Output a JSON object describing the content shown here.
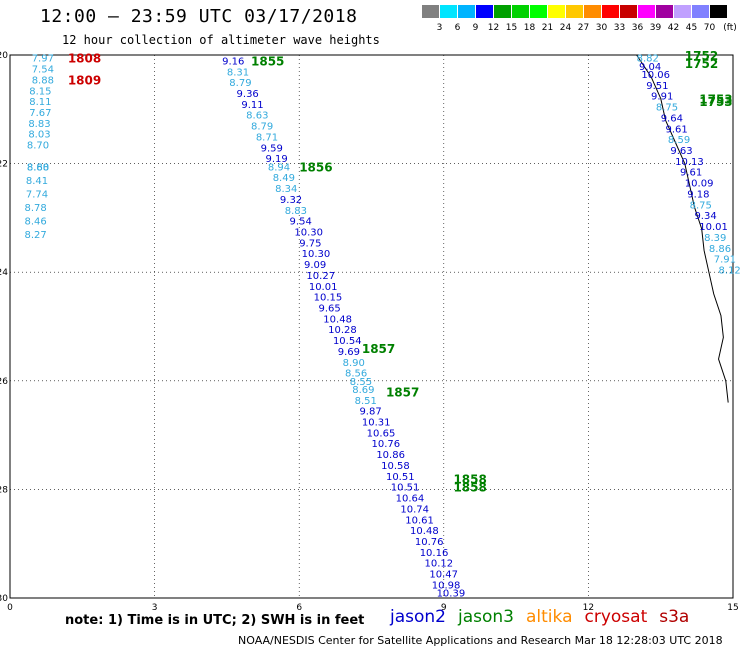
{
  "title": "12:00 – 23:59 UTC 03/17/2018",
  "subtitle": "12 hour collection of altimeter wave heights",
  "colorbar": {
    "unit": "(ft)",
    "levels": [
      "3",
      "6",
      "9",
      "12",
      "15",
      "18",
      "21",
      "24",
      "27",
      "30",
      "33",
      "36",
      "39",
      "42",
      "45",
      "70"
    ],
    "colors": [
      "#808080",
      "#00e5ff",
      "#00b4ff",
      "#0000ff",
      "#00a000",
      "#00d200",
      "#00ff00",
      "#ffff00",
      "#ffc800",
      "#ff8c00",
      "#ff0000",
      "#c80000",
      "#ff00ff",
      "#a000a0",
      "#c0a0ff",
      "#8080ff",
      "#000000"
    ]
  },
  "map": {
    "y_ticks": [
      "20",
      "22",
      "24",
      "26",
      "28",
      "30"
    ],
    "x_ticks": [
      "0",
      "3",
      "6",
      "9",
      "12",
      "15"
    ],
    "lon_range": [
      0,
      15
    ],
    "lat_range": [
      20,
      30
    ]
  },
  "series_colors": {
    "jason2": "#0000cc",
    "jason3": "#008000",
    "altika": "#ff8c00",
    "cryosat": "#cc0000",
    "s3a": "#b00000",
    "light": "#33aadd"
  },
  "tracks": {
    "left": {
      "times": [
        {
          "label": "1808",
          "x": 1.2,
          "y": 20.05,
          "color": "cryosat"
        },
        {
          "label": "1809",
          "x": 1.2,
          "y": 20.45,
          "color": "cryosat"
        }
      ],
      "values": [
        {
          "v": "7.97",
          "x": 0.45,
          "y": 20.05
        },
        {
          "v": "7.54",
          "x": 0.45,
          "y": 20.25
        },
        {
          "v": "8.88",
          "x": 0.45,
          "y": 20.45
        },
        {
          "v": "8.15",
          "x": 0.4,
          "y": 20.65
        },
        {
          "v": "8.11",
          "x": 0.4,
          "y": 20.85
        },
        {
          "v": "7.67",
          "x": 0.4,
          "y": 21.05
        },
        {
          "v": "8.83",
          "x": 0.38,
          "y": 21.25
        },
        {
          "v": "8.03",
          "x": 0.38,
          "y": 21.45
        },
        {
          "v": "8.70",
          "x": 0.35,
          "y": 21.65
        },
        {
          "v": "8.60",
          "x": 0.35,
          "y": 22.05
        },
        {
          "v": "8.41",
          "x": 0.33,
          "y": 22.3
        },
        {
          "v": "7.74",
          "x": 0.33,
          "y": 22.55
        },
        {
          "v": "8.78",
          "x": 0.3,
          "y": 22.8
        },
        {
          "v": "8.46",
          "x": 0.3,
          "y": 23.05
        },
        {
          "v": "8.27",
          "x": 0.3,
          "y": 23.3
        },
        {
          "v": "8.88",
          "x": 0.35,
          "y": 22.05
        }
      ]
    },
    "center": {
      "times": [
        {
          "label": "1855",
          "x": 5.0,
          "y": 20.1
        },
        {
          "label": "1856",
          "x": 6.0,
          "y": 22.05
        },
        {
          "label": "1857",
          "x": 7.3,
          "y": 25.4
        },
        {
          "label": "1857",
          "x": 7.8,
          "y": 26.2
        },
        {
          "label": "1858",
          "x": 9.2,
          "y": 27.8
        },
        {
          "label": "1858",
          "x": 9.2,
          "y": 27.95
        }
      ],
      "values": [
        {
          "v": "9.16",
          "x": 4.4,
          "y": 20.1,
          "c": "jason2"
        },
        {
          "v": "8.31",
          "x": 4.5,
          "y": 20.3,
          "c": "light"
        },
        {
          "v": "8.79",
          "x": 4.55,
          "y": 20.5,
          "c": "light"
        },
        {
          "v": "9.36",
          "x": 4.7,
          "y": 20.7,
          "c": "jason2"
        },
        {
          "v": "9.11",
          "x": 4.8,
          "y": 20.9,
          "c": "jason2"
        },
        {
          "v": "8.63",
          "x": 4.9,
          "y": 21.1,
          "c": "light"
        },
        {
          "v": "8.79",
          "x": 5.0,
          "y": 21.3,
          "c": "light"
        },
        {
          "v": "8.71",
          "x": 5.1,
          "y": 21.5,
          "c": "light"
        },
        {
          "v": "9.59",
          "x": 5.2,
          "y": 21.7,
          "c": "jason2"
        },
        {
          "v": "9.19",
          "x": 5.3,
          "y": 21.9,
          "c": "jason2"
        },
        {
          "v": "8.94",
          "x": 5.35,
          "y": 22.05,
          "c": "light"
        },
        {
          "v": "8.49",
          "x": 5.45,
          "y": 22.25,
          "c": "light"
        },
        {
          "v": "8.34",
          "x": 5.5,
          "y": 22.45,
          "c": "light"
        },
        {
          "v": "9.32",
          "x": 5.6,
          "y": 22.65,
          "c": "jason2"
        },
        {
          "v": "8.83",
          "x": 5.7,
          "y": 22.85,
          "c": "light"
        },
        {
          "v": "9.54",
          "x": 5.8,
          "y": 23.05,
          "c": "jason2"
        },
        {
          "v": "10.30",
          "x": 5.9,
          "y": 23.25,
          "c": "jason2"
        },
        {
          "v": "9.75",
          "x": 6.0,
          "y": 23.45,
          "c": "jason2"
        },
        {
          "v": "10.30",
          "x": 6.05,
          "y": 23.65,
          "c": "jason2"
        },
        {
          "v": "9.09",
          "x": 6.1,
          "y": 23.85,
          "c": "jason2"
        },
        {
          "v": "10.27",
          "x": 6.15,
          "y": 24.05,
          "c": "jason2"
        },
        {
          "v": "10.01",
          "x": 6.2,
          "y": 24.25,
          "c": "jason2"
        },
        {
          "v": "10.15",
          "x": 6.3,
          "y": 24.45,
          "c": "jason2"
        },
        {
          "v": "9.65",
          "x": 6.4,
          "y": 24.65,
          "c": "jason2"
        },
        {
          "v": "10.48",
          "x": 6.5,
          "y": 24.85,
          "c": "jason2"
        },
        {
          "v": "10.28",
          "x": 6.6,
          "y": 25.05,
          "c": "jason2"
        },
        {
          "v": "10.54",
          "x": 6.7,
          "y": 25.25,
          "c": "jason2"
        },
        {
          "v": "9.69",
          "x": 6.8,
          "y": 25.45,
          "c": "jason2"
        },
        {
          "v": "8.90",
          "x": 6.9,
          "y": 25.65,
          "c": "light"
        },
        {
          "v": "8.56",
          "x": 6.95,
          "y": 25.85,
          "c": "light"
        },
        {
          "v": "8.55",
          "x": 7.05,
          "y": 26.0,
          "c": "light"
        },
        {
          "v": "8.69",
          "x": 7.1,
          "y": 26.15,
          "c": "light"
        },
        {
          "v": "8.51",
          "x": 7.15,
          "y": 26.35,
          "c": "light"
        },
        {
          "v": "9.87",
          "x": 7.25,
          "y": 26.55,
          "c": "jason2"
        },
        {
          "v": "10.31",
          "x": 7.3,
          "y": 26.75,
          "c": "jason2"
        },
        {
          "v": "10.65",
          "x": 7.4,
          "y": 26.95,
          "c": "jason2"
        },
        {
          "v": "10.76",
          "x": 7.5,
          "y": 27.15,
          "c": "jason2"
        },
        {
          "v": "10.86",
          "x": 7.6,
          "y": 27.35,
          "c": "jason2"
        },
        {
          "v": "10.58",
          "x": 7.7,
          "y": 27.55,
          "c": "jason2"
        },
        {
          "v": "10.51",
          "x": 7.8,
          "y": 27.75,
          "c": "jason2"
        },
        {
          "v": "10.51",
          "x": 7.9,
          "y": 27.95,
          "c": "jason2"
        },
        {
          "v": "10.64",
          "x": 8.0,
          "y": 28.15,
          "c": "jason2"
        },
        {
          "v": "10.74",
          "x": 8.1,
          "y": 28.35,
          "c": "jason2"
        },
        {
          "v": "10.61",
          "x": 8.2,
          "y": 28.55,
          "c": "jason2"
        },
        {
          "v": "10.48",
          "x": 8.3,
          "y": 28.75,
          "c": "jason2"
        },
        {
          "v": "10.76",
          "x": 8.4,
          "y": 28.95,
          "c": "jason2"
        },
        {
          "v": "10.16",
          "x": 8.5,
          "y": 29.15,
          "c": "jason2"
        },
        {
          "v": "10.12",
          "x": 8.6,
          "y": 29.35,
          "c": "jason2"
        },
        {
          "v": "10.47",
          "x": 8.7,
          "y": 29.55,
          "c": "jason2"
        },
        {
          "v": "10.98",
          "x": 8.75,
          "y": 29.75,
          "c": "jason2"
        },
        {
          "v": "10.39",
          "x": 8.85,
          "y": 29.9,
          "c": "jason2"
        }
      ]
    },
    "right": {
      "times": [
        {
          "label": "1752",
          "x": 14.0,
          "y": 20.0
        },
        {
          "label": "1752",
          "x": 14.0,
          "y": 20.15
        },
        {
          "label": "1753",
          "x": 14.3,
          "y": 20.8
        },
        {
          "label": "1753",
          "x": 14.3,
          "y": 20.85
        }
      ],
      "values": [
        {
          "v": "8.82",
          "x": 13.0,
          "y": 20.05,
          "c": "light"
        },
        {
          "v": "9.04",
          "x": 13.05,
          "y": 20.2,
          "c": "jason2"
        },
        {
          "v": "10.06",
          "x": 13.1,
          "y": 20.35,
          "c": "jason2"
        },
        {
          "v": "9.51",
          "x": 13.2,
          "y": 20.55,
          "c": "jason2"
        },
        {
          "v": "9.91",
          "x": 13.3,
          "y": 20.75,
          "c": "jason2"
        },
        {
          "v": "8.75",
          "x": 13.4,
          "y": 20.95,
          "c": "light"
        },
        {
          "v": "9.64",
          "x": 13.5,
          "y": 21.15,
          "c": "jason2"
        },
        {
          "v": "9.61",
          "x": 13.6,
          "y": 21.35,
          "c": "jason2"
        },
        {
          "v": "8.59",
          "x": 13.65,
          "y": 21.55,
          "c": "light"
        },
        {
          "v": "9.63",
          "x": 13.7,
          "y": 21.75,
          "c": "jason2"
        },
        {
          "v": "10.13",
          "x": 13.8,
          "y": 21.95,
          "c": "jason2"
        },
        {
          "v": "9.61",
          "x": 13.9,
          "y": 22.15,
          "c": "jason2"
        },
        {
          "v": "10.09",
          "x": 14.0,
          "y": 22.35,
          "c": "jason2"
        },
        {
          "v": "9.18",
          "x": 14.05,
          "y": 22.55,
          "c": "jason2"
        },
        {
          "v": "8.75",
          "x": 14.1,
          "y": 22.75,
          "c": "light"
        },
        {
          "v": "9.34",
          "x": 14.2,
          "y": 22.95,
          "c": "jason2"
        },
        {
          "v": "10.01",
          "x": 14.3,
          "y": 23.15,
          "c": "jason2"
        },
        {
          "v": "8.39",
          "x": 14.4,
          "y": 23.35,
          "c": "light"
        },
        {
          "v": "8.86",
          "x": 14.5,
          "y": 23.55,
          "c": "light"
        },
        {
          "v": "7.91",
          "x": 14.6,
          "y": 23.75,
          "c": "light"
        },
        {
          "v": "8.12",
          "x": 14.7,
          "y": 23.95,
          "c": "light"
        }
      ]
    }
  },
  "note": "note:  1) Time is in UTC;  2) SWH is in feet",
  "legend": [
    {
      "name": "jason2",
      "color": "#0000cc"
    },
    {
      "name": "jason3",
      "color": "#008000"
    },
    {
      "name": "altika",
      "color": "#ff8c00"
    },
    {
      "name": "cryosat",
      "color": "#cc0000"
    },
    {
      "name": "s3a",
      "color": "#b00000"
    }
  ],
  "footer": "NOAA/NESDIS Center for Satellite Applications and Research    Mar 18 12:28:03 UTC 2018"
}
